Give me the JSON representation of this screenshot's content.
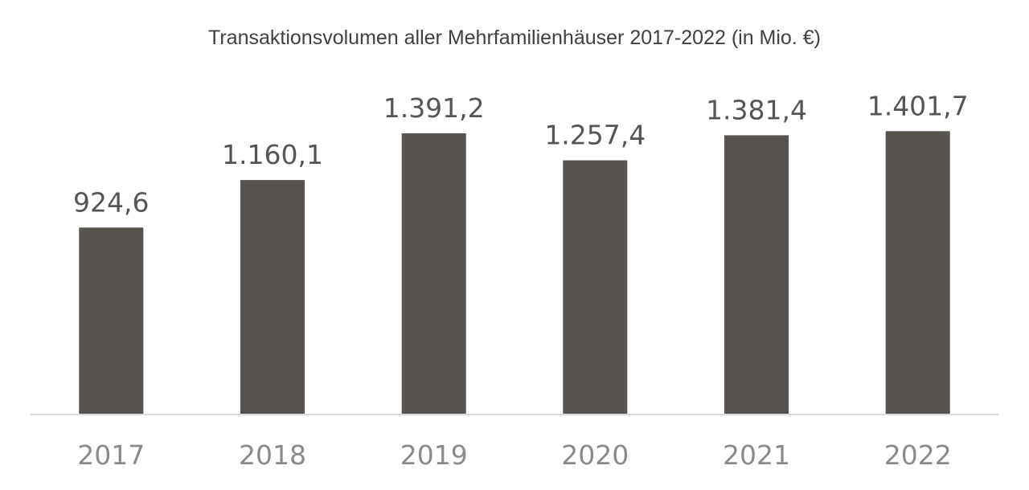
{
  "chart_data": {
    "type": "bar",
    "title": "Transaktionsvolumen aller Mehrfamilienhäuser 2017-2022 (in Mio. €)",
    "xlabel": "",
    "ylabel": "",
    "categories": [
      "2017",
      "2018",
      "2019",
      "2020",
      "2021",
      "2022"
    ],
    "values": [
      924.6,
      1160.1,
      1391.2,
      1257.4,
      1381.4,
      1401.7
    ],
    "data_labels": [
      "924,6",
      "1.160,1",
      "1.391,2",
      "1.257,4",
      "1.381,4",
      "1.401,7"
    ],
    "ylim": [
      0,
      1510
    ],
    "grid": false,
    "legend": "none",
    "colors": {
      "bar": "#57534e",
      "axis": "#d9d9d9"
    }
  }
}
